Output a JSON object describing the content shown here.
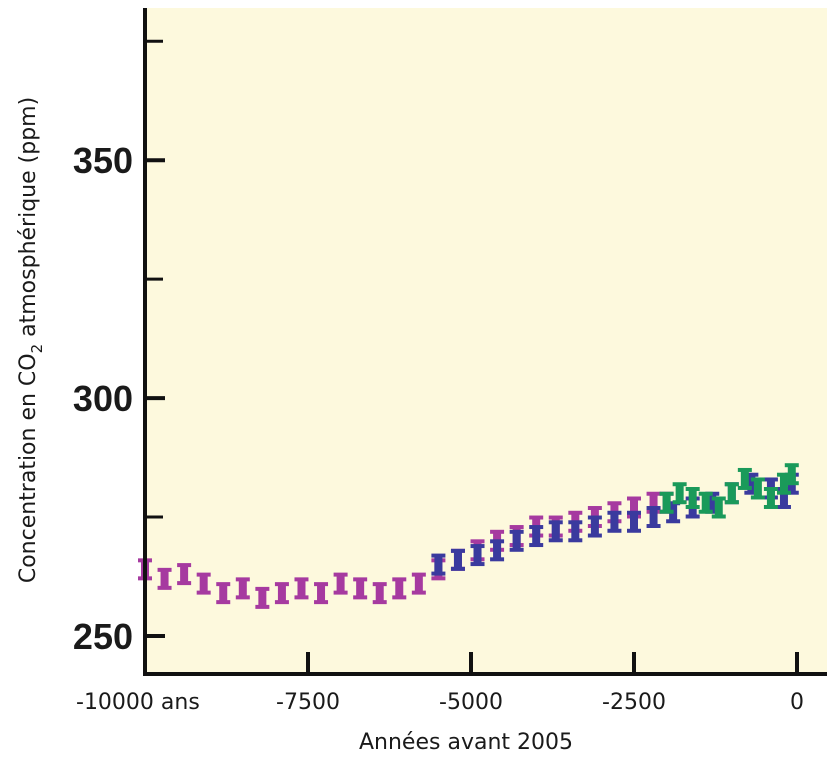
{
  "chart_data": {
    "type": "scatter",
    "title": "",
    "xlabel": "Années avant 2005",
    "ylabel": {
      "prefix": "Concentration en CO",
      "subscript": "2",
      "suffix": " atmosphérique (ppm)"
    },
    "xlim": [
      -10000,
      0
    ],
    "ylim": [
      242,
      382
    ],
    "x_ticks": [
      {
        "value": -10000,
        "label": "-10000 ans"
      },
      {
        "value": -7500,
        "label": "-7500"
      },
      {
        "value": -5000,
        "label": "-5000"
      },
      {
        "value": -2500,
        "label": "-2500"
      },
      {
        "value": 0,
        "label": "0"
      }
    ],
    "y_ticks": [
      {
        "value": 250,
        "label": "250"
      },
      {
        "value": 300,
        "label": "300"
      },
      {
        "value": 350,
        "label": "350"
      }
    ],
    "y_minor_ticks": [
      275,
      325,
      375
    ],
    "grid": false,
    "background_color": "#fdf9dd",
    "series": [
      {
        "color": "#a63aa0",
        "marker": "errorbar",
        "x": [
          -10000,
          -9700,
          -9400,
          -9100,
          -8800,
          -8500,
          -8200,
          -7900,
          -7600,
          -7300,
          -7000,
          -6700,
          -6400,
          -6100,
          -5800,
          -5500,
          -5200,
          -4900,
          -4600,
          -4300,
          -4000,
          -3700,
          -3400,
          -3100,
          -2800,
          -2500,
          -2200,
          -2000
        ],
        "y": [
          264,
          262,
          263,
          261,
          259,
          260,
          258,
          259,
          260,
          259,
          261,
          260,
          259,
          260,
          261,
          264,
          266,
          268,
          270,
          271,
          273,
          273,
          274,
          275,
          276,
          277,
          278,
          278
        ]
      },
      {
        "color": "#3a3a9e",
        "marker": "errorbar",
        "x": [
          -5500,
          -5200,
          -4900,
          -4600,
          -4300,
          -4000,
          -3700,
          -3400,
          -3100,
          -2800,
          -2500,
          -2200,
          -1900,
          -1600,
          -1300,
          -1000,
          -700,
          -400,
          -200,
          -80
        ],
        "y": [
          265,
          266,
          267,
          268,
          270,
          271,
          272,
          272,
          273,
          274,
          274,
          275,
          276,
          277,
          278,
          280,
          282,
          281,
          279,
          282
        ]
      },
      {
        "color": "#1a9a5a",
        "marker": "errorbar",
        "x": [
          -2000,
          -1800,
          -1600,
          -1400,
          -1200,
          -1000,
          -800,
          -600,
          -400,
          -200,
          -80
        ],
        "y": [
          278,
          280,
          279,
          278,
          277,
          280,
          283,
          281,
          279,
          282,
          284
        ]
      }
    ]
  }
}
